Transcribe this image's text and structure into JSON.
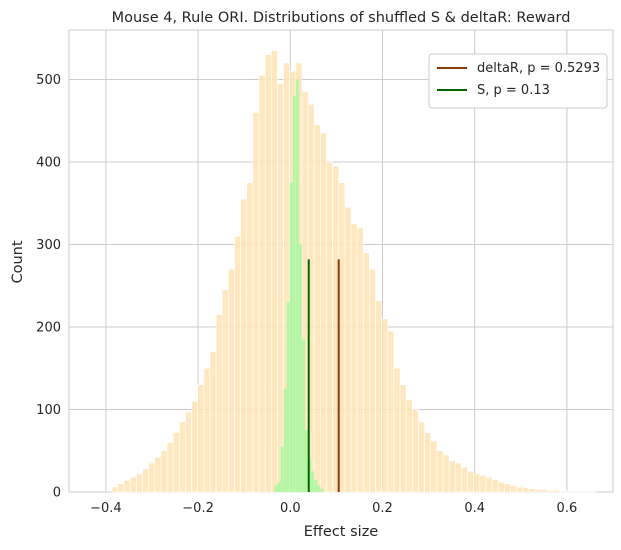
{
  "chart_data": {
    "type": "histogram",
    "title": "Mouse 4, Rule ORI. Distributions of shuffled S & deltaR: Reward",
    "xlabel": "Effect size",
    "ylabel": "Count",
    "xlim": [
      -0.48,
      0.7
    ],
    "ylim": [
      0,
      560
    ],
    "x_ticks": [
      -0.4,
      -0.2,
      0.0,
      0.2,
      0.4,
      0.6
    ],
    "x_tick_labels": [
      "−0.4",
      "−0.2",
      "0.0",
      "0.2",
      "0.4",
      "0.6"
    ],
    "y_ticks": [
      0,
      100,
      200,
      300,
      400,
      500
    ],
    "y_tick_labels": [
      "0",
      "100",
      "200",
      "300",
      "400",
      "500"
    ],
    "grid": true,
    "legend_position": "top-right",
    "legend": [
      {
        "label": "deltaR, p = 0.5293",
        "color": "#8b3a0a"
      },
      {
        "label": "S, p = 0.13",
        "color": "#006400"
      }
    ],
    "series": [
      {
        "name": "deltaR",
        "kind": "histogram",
        "color": "#ffe4b5",
        "bin_width": 0.0133,
        "bin_starts": [
          -0.387,
          -0.3737,
          -0.3604,
          -0.3471,
          -0.3338,
          -0.3205,
          -0.3072,
          -0.2939,
          -0.2806,
          -0.2673,
          -0.254,
          -0.2407,
          -0.2274,
          -0.2141,
          -0.2008,
          -0.1875,
          -0.1742,
          -0.1609,
          -0.1476,
          -0.1343,
          -0.121,
          -0.1077,
          -0.0944,
          -0.0811,
          -0.0678,
          -0.0545,
          -0.0412,
          -0.0279,
          -0.0146,
          -0.0013,
          0.012,
          0.0253,
          0.0386,
          0.0519,
          0.0652,
          0.0785,
          0.0918,
          0.1051,
          0.1184,
          0.1317,
          0.145,
          0.1583,
          0.1716,
          0.1849,
          0.1982,
          0.2115,
          0.2248,
          0.2381,
          0.2514,
          0.2647,
          0.278,
          0.2913,
          0.3046,
          0.3179,
          0.3312,
          0.3445,
          0.3578,
          0.3711,
          0.3844,
          0.3977,
          0.411,
          0.4243,
          0.4376,
          0.4509,
          0.4642,
          0.4775,
          0.4908,
          0.5041,
          0.5174,
          0.5307,
          0.544,
          0.5573,
          0.5706,
          0.5839,
          0.5972,
          0.6105,
          0.6238,
          0.6371,
          0.6504
        ],
        "counts": [
          6,
          10,
          14,
          18,
          22,
          28,
          35,
          42,
          50,
          60,
          72,
          85,
          97,
          110,
          130,
          150,
          170,
          215,
          245,
          270,
          310,
          355,
          375,
          460,
          505,
          530,
          535,
          495,
          520,
          510,
          520,
          485,
          470,
          445,
          435,
          400,
          395,
          375,
          345,
          325,
          320,
          290,
          270,
          232,
          210,
          195,
          150,
          130,
          112,
          100,
          85,
          72,
          62,
          50,
          45,
          38,
          35,
          30,
          25,
          22,
          20,
          18,
          15,
          12,
          10,
          8,
          6,
          5,
          4,
          3,
          3,
          2,
          2,
          1,
          1,
          1,
          1,
          1,
          1
        ]
      },
      {
        "name": "S",
        "kind": "histogram",
        "color": "#98fb98",
        "bin_width": 0.00665,
        "bin_starts": [
          -0.0345,
          -0.02785,
          -0.0212,
          -0.01455,
          -0.0079,
          -0.00125,
          0.0054,
          0.01205,
          0.0187,
          0.02535,
          0.032,
          0.03865,
          0.0453,
          0.05195,
          0.0586,
          0.06525
        ],
        "counts": [
          8,
          12,
          55,
          125,
          230,
          375,
          480,
          500,
          300,
          185,
          75,
          40,
          25,
          15,
          8,
          4
        ]
      }
    ],
    "vlines": [
      {
        "name": "deltaR",
        "x": 0.105,
        "y_max": 282,
        "color": "#8b3a0a"
      },
      {
        "name": "S",
        "x": 0.04,
        "y_max": 282,
        "color": "#006400"
      }
    ]
  }
}
